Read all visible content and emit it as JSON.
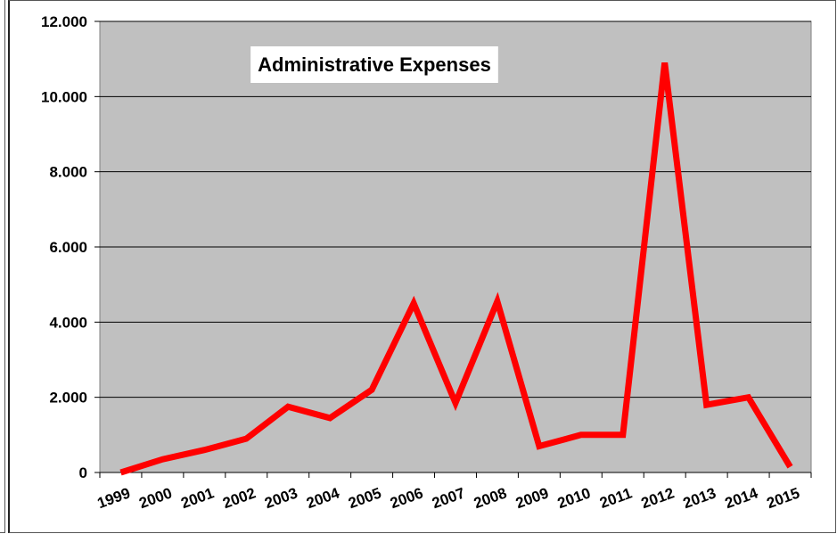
{
  "chart_data": {
    "type": "line",
    "title": "Administrative Expenses",
    "xlabel": "",
    "ylabel": "",
    "categories": [
      "1999",
      "2000",
      "2001",
      "2002",
      "2003",
      "2004",
      "2005",
      "2006",
      "2007",
      "2008",
      "2009",
      "2010",
      "2011",
      "2012",
      "2013",
      "2014",
      "2015"
    ],
    "series": [
      {
        "values": [
          0,
          350,
          600,
          900,
          1750,
          1450,
          2200,
          4500,
          1850,
          4550,
          700,
          1000,
          1000,
          10900,
          1800,
          2000,
          150
        ],
        "color": "#ff0000"
      }
    ],
    "ylim": [
      0,
      12000
    ],
    "y_ticks": [
      0,
      2000,
      4000,
      6000,
      8000,
      10000,
      12000
    ],
    "y_tick_labels": [
      "0",
      "2.000",
      "4.000",
      "6.000",
      "8.000",
      "10.000",
      "12.000"
    ],
    "grid": true,
    "legend": "none",
    "plot_background": "#c0c0c0"
  }
}
